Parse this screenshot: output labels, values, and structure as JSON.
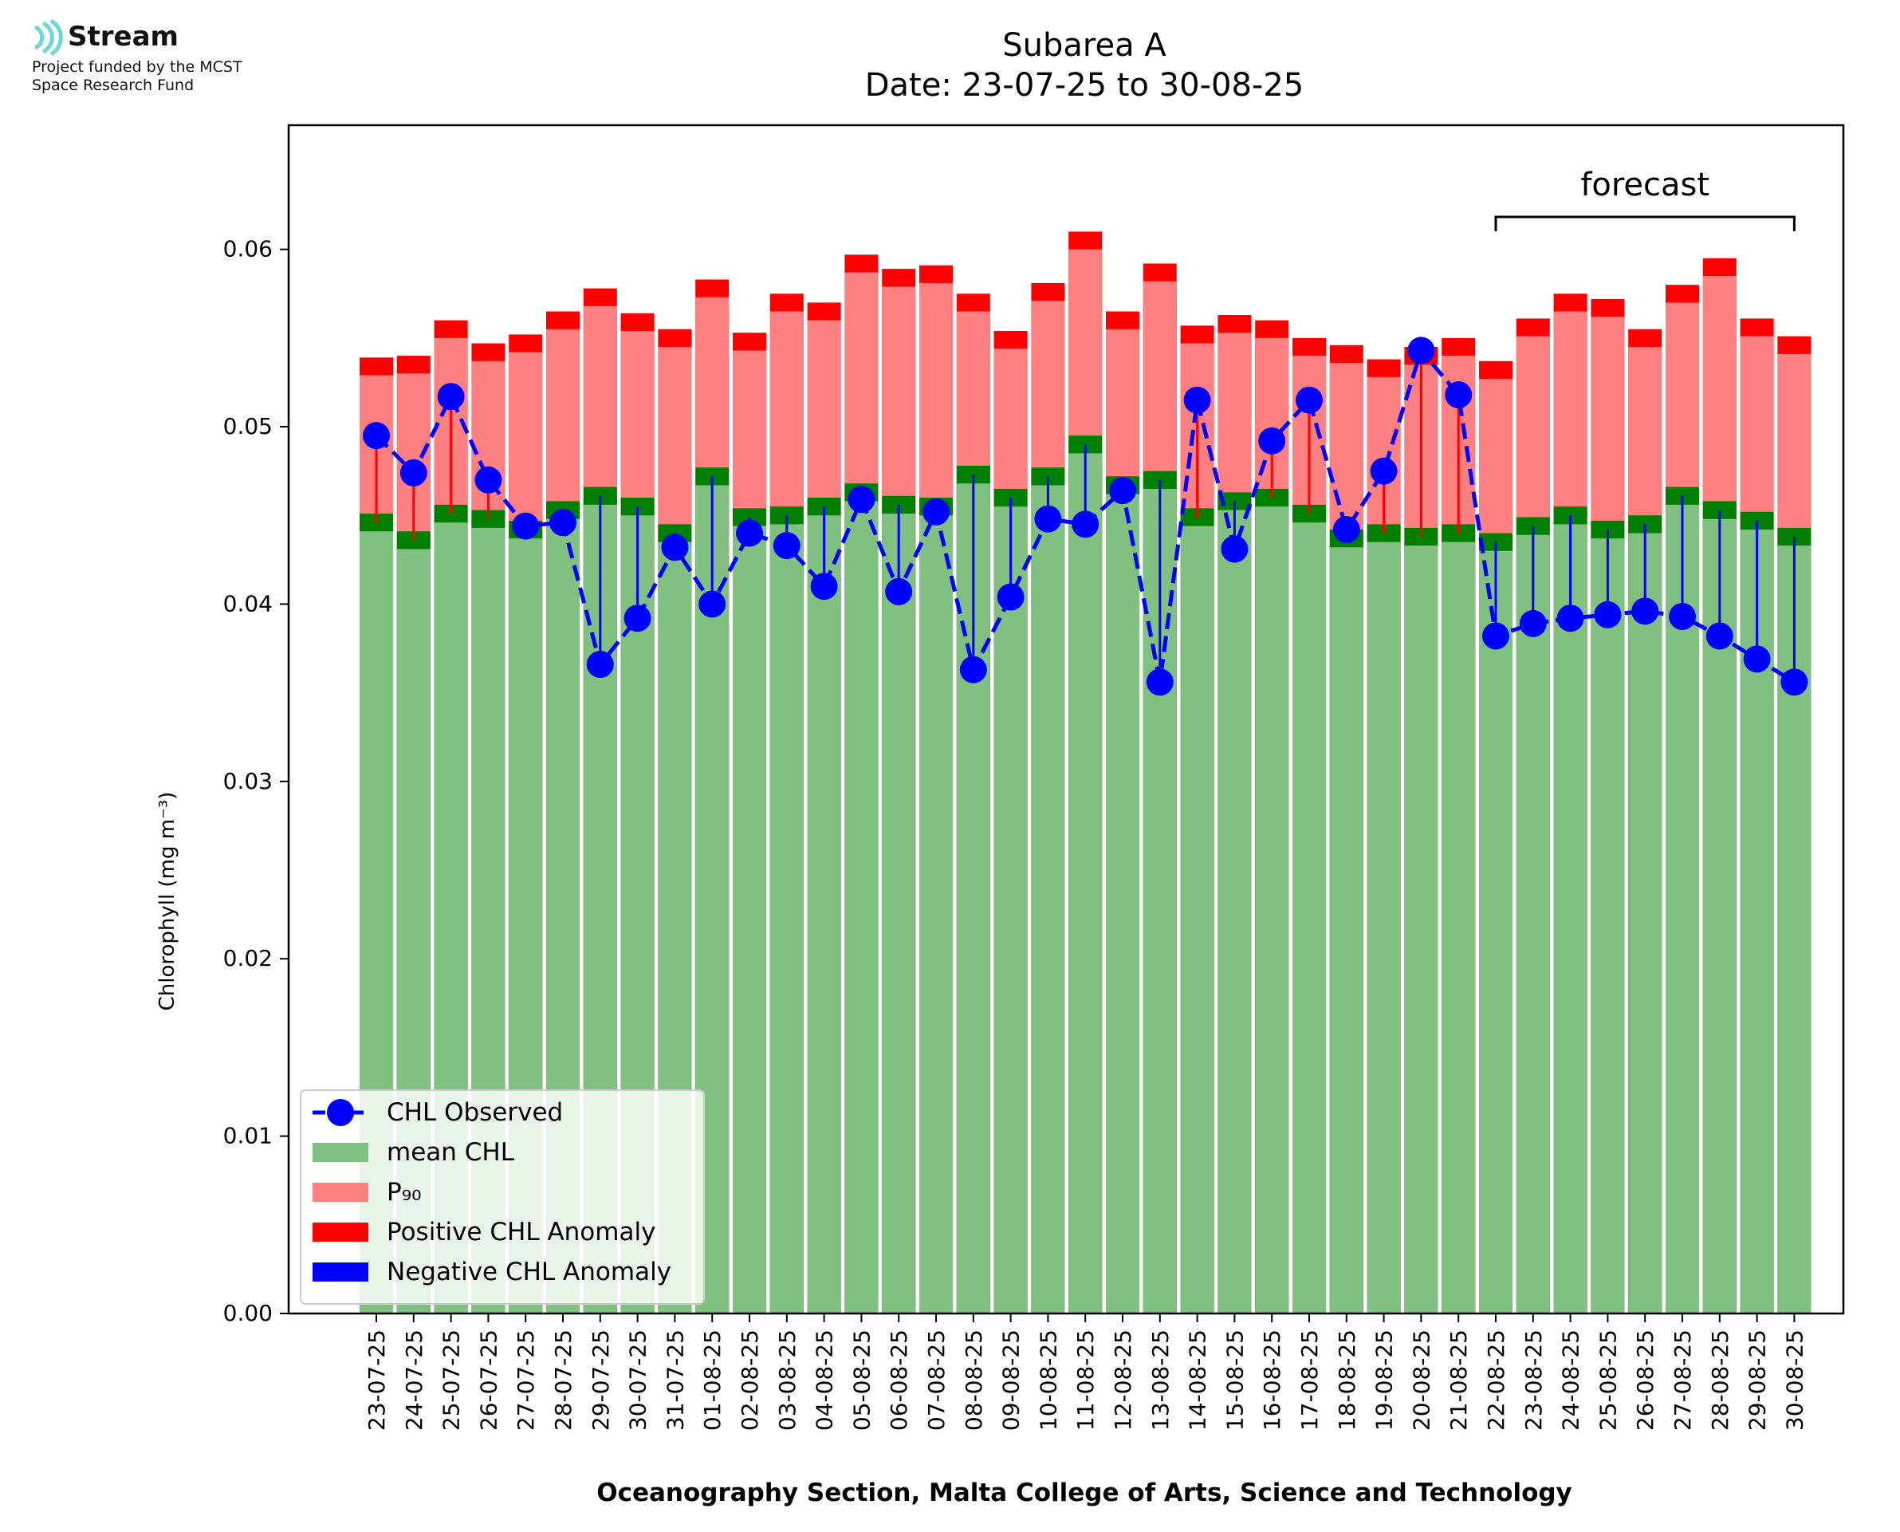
{
  "logo": {
    "name": "Stream",
    "line1": "Project funded by the MCST",
    "line2": "Space Research Fund",
    "color": "#6fd6d8"
  },
  "chart_data": {
    "type": "bar",
    "title": "Subarea A",
    "subtitle": "Date: 23-07-25 to 30-08-25",
    "ylabel": "Chlorophyll (mg m⁻³)",
    "xlabel": "Oceanography Section, Malta College of Arts, Science and Technology",
    "ylim": [
      0,
      0.067
    ],
    "yticks": [
      "0.00",
      "0.01",
      "0.02",
      "0.03",
      "0.04",
      "0.05",
      "0.06"
    ],
    "legend_position": "lower-left",
    "forecast_label": "forecast",
    "forecast_range": [
      "22-08-25",
      "30-08-25"
    ],
    "categories": [
      "23-07-25",
      "24-07-25",
      "25-07-25",
      "26-07-25",
      "27-07-25",
      "28-07-25",
      "29-07-25",
      "30-07-25",
      "31-07-25",
      "01-08-25",
      "02-08-25",
      "03-08-25",
      "04-08-25",
      "05-08-25",
      "06-08-25",
      "07-08-25",
      "08-08-25",
      "09-08-25",
      "10-08-25",
      "11-08-25",
      "12-08-25",
      "13-08-25",
      "14-08-25",
      "15-08-25",
      "16-08-25",
      "17-08-25",
      "18-08-25",
      "19-08-25",
      "20-08-25",
      "21-08-25",
      "22-08-25",
      "23-08-25",
      "24-08-25",
      "25-08-25",
      "26-08-25",
      "27-08-25",
      "28-08-25",
      "29-08-25",
      "30-08-25"
    ],
    "series": [
      {
        "name": "mean CHL",
        "color": "#80c080",
        "values": [
          0.0446,
          0.0436,
          0.0451,
          0.0448,
          0.0442,
          0.0453,
          0.0461,
          0.0455,
          0.044,
          0.0472,
          0.0449,
          0.045,
          0.0455,
          0.0463,
          0.0456,
          0.0455,
          0.0473,
          0.046,
          0.0472,
          0.049,
          0.0467,
          0.047,
          0.0449,
          0.0458,
          0.046,
          0.0451,
          0.0437,
          0.044,
          0.0438,
          0.044,
          0.0435,
          0.0444,
          0.045,
          0.0442,
          0.0445,
          0.0461,
          0.0453,
          0.0447,
          0.0438
        ]
      },
      {
        "name": "P₉₀",
        "color": "#ff8080",
        "values": [
          0.0534,
          0.0535,
          0.0555,
          0.0542,
          0.0547,
          0.056,
          0.0573,
          0.0559,
          0.055,
          0.0578,
          0.0548,
          0.057,
          0.0565,
          0.0592,
          0.0584,
          0.0586,
          0.057,
          0.0549,
          0.0576,
          0.0605,
          0.056,
          0.0587,
          0.0552,
          0.0558,
          0.0555,
          0.0545,
          0.0541,
          0.0533,
          0.054,
          0.0545,
          0.0532,
          0.0556,
          0.057,
          0.0567,
          0.055,
          0.0575,
          0.059,
          0.0556,
          0.0546
        ]
      },
      {
        "name": "CHL Observed",
        "color": "#0000ff",
        "values": [
          0.0495,
          0.0474,
          0.0517,
          0.047,
          0.0444,
          0.0446,
          0.0366,
          0.0392,
          0.0432,
          0.04,
          0.044,
          0.0433,
          0.041,
          0.0459,
          0.0407,
          0.0452,
          0.0363,
          0.0404,
          0.0448,
          0.0445,
          0.0464,
          0.0356,
          0.0515,
          0.0431,
          0.0492,
          0.0515,
          0.0442,
          0.0475,
          0.0543,
          0.0518,
          0.0382,
          0.0389,
          0.0392,
          0.0394,
          0.0396,
          0.0393,
          0.0382,
          0.0369,
          0.0356
        ]
      }
    ],
    "legend": [
      "CHL Observed",
      "mean CHL",
      "P₉₀",
      "Positive CHL Anomaly",
      "Negative CHL Anomaly"
    ],
    "colors": {
      "mean_cap": "#008000",
      "p90_cap": "#ff0000",
      "positive": "#ff0000",
      "negative": "#0000ff"
    }
  }
}
